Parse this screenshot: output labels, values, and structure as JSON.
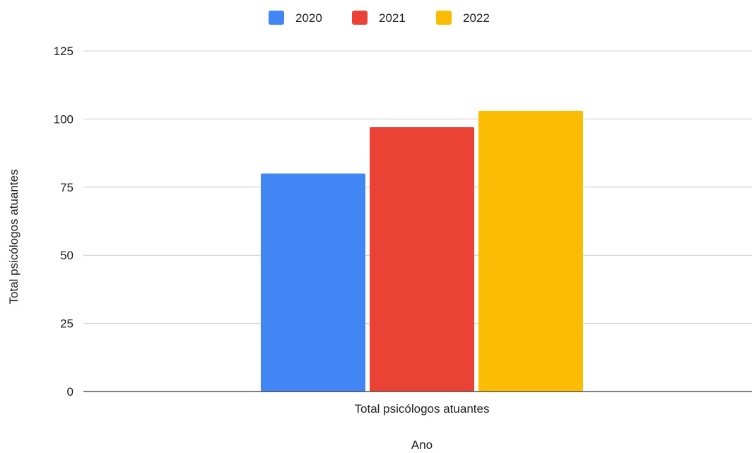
{
  "chart_data": {
    "type": "bar",
    "categories": [
      "Total psicólogos atuantes"
    ],
    "series": [
      {
        "name": "2020",
        "values": [
          80
        ],
        "color": "#4285F4"
      },
      {
        "name": "2021",
        "values": [
          97
        ],
        "color": "#EA4335"
      },
      {
        "name": "2022",
        "values": [
          103
        ],
        "color": "#FBBC04"
      }
    ],
    "xlabel": "Ano",
    "ylabel": "Total psicólogos atuantes",
    "ylim": [
      0,
      125
    ],
    "yticks": [
      0,
      25,
      50,
      75,
      100,
      125
    ],
    "grid": true,
    "legend_position": "top-center"
  },
  "colors": {
    "gridline": "#cccccc",
    "axis": "#333333",
    "text": "#222222"
  }
}
